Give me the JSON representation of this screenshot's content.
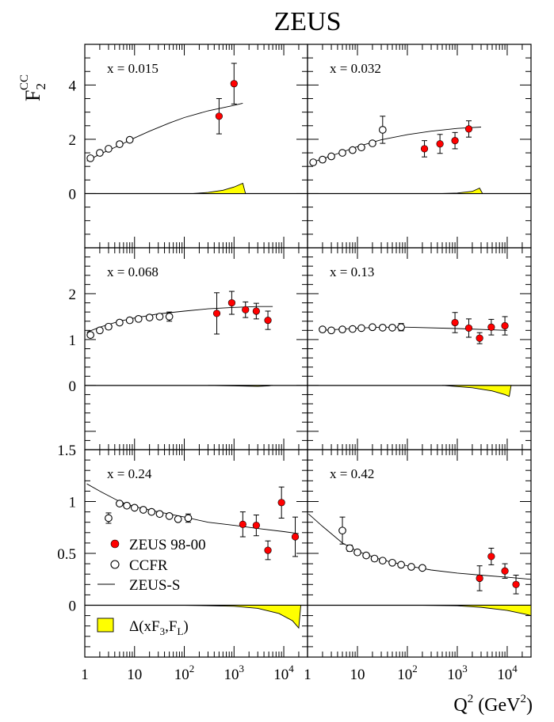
{
  "title": "ZEUS",
  "y_label": {
    "main": "F",
    "sub": "2",
    "sup": "CC"
  },
  "x_label": {
    "main": "Q",
    "sup": "2",
    "unit_open": " (GeV",
    "unit_sup": "2",
    "unit_close": ")"
  },
  "legend": {
    "zeus": "ZEUS 98-00",
    "ccfr": "CCFR",
    "theory": "ZEUS-S",
    "band": {
      "pre": "Δ(xF",
      "sub3": "3",
      "mid": ",F",
      "subL": "L",
      "post": ")"
    }
  },
  "colors": {
    "zeus_points": "#ff0000",
    "band": "#ffff00",
    "ccfr_points": "#ffffff"
  },
  "chart_data": {
    "type": "scatter",
    "x_scale": "log",
    "xlim": [
      1,
      30000
    ],
    "x_ticks": [
      {
        "v": 1,
        "m": "1",
        "e": ""
      },
      {
        "v": 10,
        "m": "10",
        "e": ""
      },
      {
        "v": 100,
        "m": "10",
        "e": "2"
      },
      {
        "v": 1000,
        "m": "10",
        "e": "3"
      },
      {
        "v": 10000,
        "m": "10",
        "e": "4"
      }
    ],
    "rows": [
      {
        "ylim": [
          -2,
          5.5
        ],
        "y_ticks": [
          {
            "v": 0,
            "t": "0"
          },
          {
            "v": 2,
            "t": "2"
          },
          {
            "v": 4,
            "t": "4"
          }
        ]
      },
      {
        "ylim": [
          -1.4,
          3.0
        ],
        "y_ticks": [
          {
            "v": 0,
            "t": "0"
          },
          {
            "v": 1,
            "t": "1"
          },
          {
            "v": 2,
            "t": "2"
          }
        ]
      },
      {
        "ylim": [
          -0.5,
          1.5
        ],
        "y_ticks": [
          {
            "v": 0,
            "t": "0"
          },
          {
            "v": 0.5,
            "t": "0.5"
          },
          {
            "v": 1,
            "t": "1"
          },
          {
            "v": 1.5,
            "t": "1.5"
          }
        ]
      }
    ],
    "panels": [
      {
        "label": "x = 0.015",
        "zeus": [
          [
            500,
            2.85,
            0.65
          ],
          [
            1000,
            4.05,
            0.75
          ]
        ],
        "ccfr": [
          [
            1.3,
            1.3,
            0.05
          ],
          [
            2,
            1.5,
            0.05
          ],
          [
            3,
            1.65,
            0.05
          ],
          [
            5,
            1.82,
            0.05
          ],
          [
            8,
            1.98,
            0.05
          ]
        ],
        "theory": [
          [
            1.1,
            1.2
          ],
          [
            2,
            1.45
          ],
          [
            5,
            1.78
          ],
          [
            10,
            2.05
          ],
          [
            20,
            2.3
          ],
          [
            50,
            2.6
          ],
          [
            100,
            2.8
          ],
          [
            300,
            3.05
          ],
          [
            1000,
            3.25
          ],
          [
            1500,
            3.33
          ]
        ],
        "band": [
          [
            150,
            0
          ],
          [
            300,
            0.04
          ],
          [
            600,
            0.12
          ],
          [
            1000,
            0.24
          ],
          [
            1500,
            0.38
          ],
          [
            1700,
            0
          ]
        ]
      },
      {
        "label": "x = 0.032",
        "zeus": [
          [
            220,
            1.65,
            0.3
          ],
          [
            450,
            1.83,
            0.35
          ],
          [
            900,
            1.95,
            0.3
          ],
          [
            1700,
            2.38,
            0.3
          ]
        ],
        "ccfr": [
          [
            1.3,
            1.15,
            0.05
          ],
          [
            2,
            1.25,
            0.05
          ],
          [
            3,
            1.37,
            0.05
          ],
          [
            5,
            1.5,
            0.05
          ],
          [
            8,
            1.6,
            0.05
          ],
          [
            12,
            1.7,
            0.05
          ],
          [
            20,
            1.85,
            0.05
          ],
          [
            32,
            2.35,
            0.5
          ]
        ],
        "theory": [
          [
            1.1,
            1.12
          ],
          [
            2,
            1.28
          ],
          [
            5,
            1.53
          ],
          [
            10,
            1.73
          ],
          [
            30,
            1.98
          ],
          [
            100,
            2.17
          ],
          [
            300,
            2.3
          ],
          [
            1000,
            2.4
          ],
          [
            3000,
            2.45
          ]
        ],
        "band": [
          [
            500,
            0
          ],
          [
            1000,
            0.02
          ],
          [
            2000,
            0.08
          ],
          [
            2800,
            0.2
          ],
          [
            3200,
            0
          ]
        ]
      },
      {
        "label": "x = 0.068",
        "zeus": [
          [
            450,
            1.57,
            0.45
          ],
          [
            900,
            1.8,
            0.25
          ],
          [
            1700,
            1.65,
            0.17
          ],
          [
            2800,
            1.62,
            0.17
          ],
          [
            4800,
            1.42,
            0.2
          ]
        ],
        "ccfr": [
          [
            1.3,
            1.1,
            0.05
          ],
          [
            2,
            1.2,
            0.05
          ],
          [
            3,
            1.28,
            0.05
          ],
          [
            5,
            1.37,
            0.05
          ],
          [
            8,
            1.42,
            0.05
          ],
          [
            12,
            1.45,
            0.05
          ],
          [
            20,
            1.48,
            0.05
          ],
          [
            32,
            1.5,
            0.05
          ],
          [
            50,
            1.5,
            0.1
          ]
        ],
        "theory": [
          [
            1.1,
            1.16
          ],
          [
            2,
            1.27
          ],
          [
            5,
            1.4
          ],
          [
            10,
            1.47
          ],
          [
            30,
            1.56
          ],
          [
            100,
            1.62
          ],
          [
            300,
            1.67
          ],
          [
            1000,
            1.7
          ],
          [
            3000,
            1.72
          ],
          [
            6000,
            1.72
          ]
        ],
        "band": [
          [
            300,
            0
          ],
          [
            1000,
            -0.01
          ],
          [
            3000,
            -0.02
          ],
          [
            5000,
            -0.01
          ],
          [
            6000,
            0
          ]
        ]
      },
      {
        "label": "x = 0.13",
        "zeus": [
          [
            900,
            1.37,
            0.22
          ],
          [
            1700,
            1.25,
            0.2
          ],
          [
            2800,
            1.03,
            0.12
          ],
          [
            4800,
            1.27,
            0.17
          ],
          [
            9000,
            1.3,
            0.2
          ]
        ],
        "ccfr": [
          [
            2,
            1.22,
            0.04
          ],
          [
            3,
            1.2,
            0.04
          ],
          [
            5,
            1.22,
            0.04
          ],
          [
            8,
            1.23,
            0.04
          ],
          [
            12,
            1.25,
            0.04
          ],
          [
            20,
            1.27,
            0.04
          ],
          [
            32,
            1.26,
            0.04
          ],
          [
            50,
            1.26,
            0.04
          ],
          [
            75,
            1.27,
            0.08
          ]
        ],
        "theory": [
          [
            2,
            1.2
          ],
          [
            10,
            1.25
          ],
          [
            30,
            1.27
          ],
          [
            100,
            1.27
          ],
          [
            1000,
            1.24
          ],
          [
            10000,
            1.2
          ]
        ],
        "band": [
          [
            500,
            0
          ],
          [
            2000,
            -0.05
          ],
          [
            5000,
            -0.12
          ],
          [
            9000,
            -0.2
          ],
          [
            11000,
            -0.24
          ],
          [
            12000,
            0
          ]
        ]
      },
      {
        "label": "x = 0.24",
        "zeus": [
          [
            1500,
            0.78,
            0.12
          ],
          [
            2800,
            0.77,
            0.1
          ],
          [
            4800,
            0.53,
            0.09
          ],
          [
            9000,
            0.99,
            0.15
          ],
          [
            17000,
            0.66,
            0.19
          ]
        ],
        "ccfr": [
          [
            3,
            0.84,
            0.05
          ],
          [
            5,
            0.98,
            0.02
          ],
          [
            7,
            0.96,
            0.02
          ],
          [
            10,
            0.94,
            0.02
          ],
          [
            15,
            0.92,
            0.02
          ],
          [
            22,
            0.9,
            0.02
          ],
          [
            32,
            0.88,
            0.02
          ],
          [
            50,
            0.86,
            0.02
          ],
          [
            75,
            0.83,
            0.02
          ],
          [
            120,
            0.84,
            0.04
          ]
        ],
        "theory": [
          [
            1.1,
            1.17
          ],
          [
            2,
            1.1
          ],
          [
            5,
            1.0
          ],
          [
            10,
            0.95
          ],
          [
            30,
            0.9
          ],
          [
            100,
            0.85
          ],
          [
            300,
            0.8
          ],
          [
            1000,
            0.77
          ],
          [
            3000,
            0.74
          ],
          [
            10000,
            0.71
          ],
          [
            20000,
            0.69
          ]
        ],
        "band": [
          [
            100,
            0
          ],
          [
            1000,
            -0.01
          ],
          [
            3000,
            -0.03
          ],
          [
            8000,
            -0.08
          ],
          [
            15000,
            -0.15
          ],
          [
            20000,
            -0.22
          ],
          [
            22000,
            0
          ]
        ]
      },
      {
        "label": "x = 0.42",
        "zeus": [
          [
            2800,
            0.26,
            0.12
          ],
          [
            4800,
            0.47,
            0.08
          ],
          [
            9000,
            0.33,
            0.07
          ],
          [
            15000,
            0.2,
            0.09
          ]
        ],
        "ccfr": [
          [
            5,
            0.72,
            0.13
          ],
          [
            7,
            0.55,
            0.03
          ],
          [
            10,
            0.51,
            0.02
          ],
          [
            15,
            0.48,
            0.02
          ],
          [
            22,
            0.45,
            0.02
          ],
          [
            32,
            0.43,
            0.02
          ],
          [
            50,
            0.41,
            0.02
          ],
          [
            75,
            0.39,
            0.02
          ],
          [
            120,
            0.37,
            0.02
          ],
          [
            200,
            0.36,
            0.02
          ]
        ],
        "theory": [
          [
            1.05,
            0.88
          ],
          [
            2,
            0.76
          ],
          [
            5,
            0.6
          ],
          [
            10,
            0.52
          ],
          [
            30,
            0.44
          ],
          [
            100,
            0.38
          ],
          [
            300,
            0.34
          ],
          [
            1000,
            0.31
          ],
          [
            3000,
            0.29
          ],
          [
            10000,
            0.27
          ],
          [
            30000,
            0.25
          ]
        ],
        "band": [
          [
            200,
            0
          ],
          [
            1000,
            -0.005
          ],
          [
            3000,
            -0.02
          ],
          [
            10000,
            -0.05
          ],
          [
            25000,
            -0.09
          ],
          [
            30000,
            -0.1
          ],
          [
            30000,
            0
          ]
        ]
      }
    ]
  }
}
